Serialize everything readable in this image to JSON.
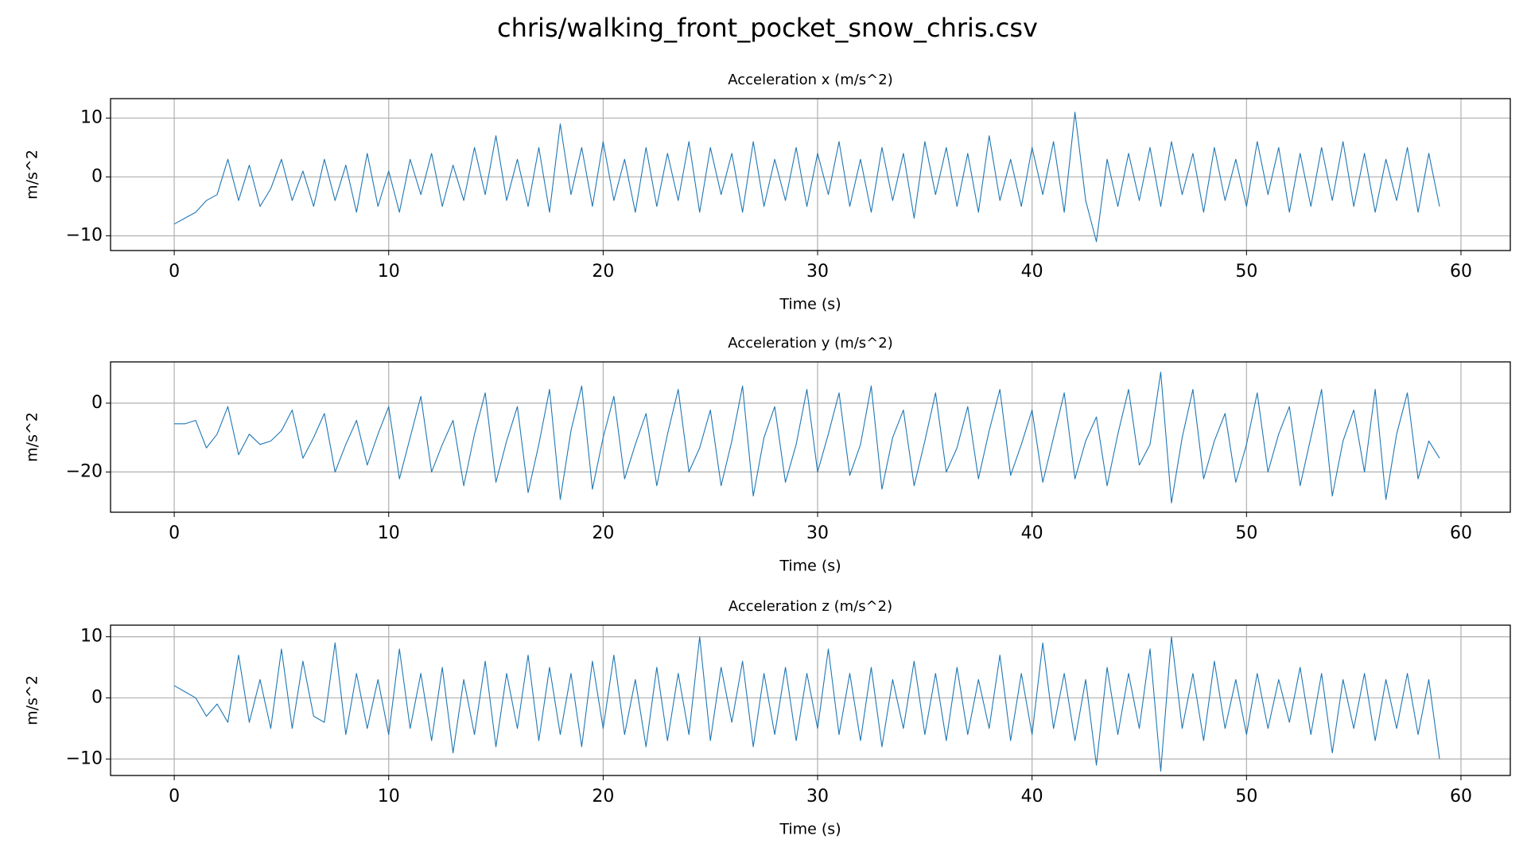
{
  "title": "chris/walking_front_pocket_snow_chris.csv",
  "chart_data": [
    {
      "type": "line",
      "title": "Acceleration x (m/s^2)",
      "x_label": "Time (s)",
      "y_label": "m/s^2",
      "grid": true,
      "xlim": [
        -2.97,
        62.3
      ],
      "xticks": [
        0,
        10,
        20,
        30,
        40,
        50,
        60
      ],
      "ylim": [
        -12.5,
        13.3
      ],
      "yticks": [
        {
          "value": -10,
          "label": "−10"
        },
        0,
        10
      ],
      "x": [
        0,
        0.5,
        1,
        1.5,
        2,
        2.5,
        3,
        3.5,
        4,
        4.5,
        5,
        5.5,
        6,
        6.5,
        7,
        7.5,
        8,
        8.5,
        9,
        9.5,
        10,
        10.5,
        11,
        11.5,
        12,
        12.5,
        13,
        13.5,
        14,
        14.5,
        15,
        15.5,
        16,
        16.5,
        17,
        17.5,
        18,
        18.5,
        19,
        19.5,
        20,
        20.5,
        21,
        21.5,
        22,
        22.5,
        23,
        23.5,
        24,
        24.5,
        25,
        25.5,
        26,
        26.5,
        27,
        27.5,
        28,
        28.5,
        29,
        29.5,
        30,
        30.5,
        31,
        31.5,
        32,
        32.5,
        33,
        33.5,
        34,
        34.5,
        35,
        35.5,
        36,
        36.5,
        37,
        37.5,
        38,
        38.5,
        39,
        39.5,
        40,
        40.5,
        41,
        41.5,
        42,
        42.5,
        43,
        43.5,
        44,
        44.5,
        45,
        45.5,
        46,
        46.5,
        47,
        47.5,
        48,
        48.5,
        49,
        49.5,
        50,
        50.5,
        51,
        51.5,
        52,
        52.5,
        53,
        53.5,
        54,
        54.5,
        55,
        55.5,
        56,
        56.5,
        57,
        57.5,
        58,
        58.5,
        59
      ],
      "series": [
        {
          "color": "#1f77b4",
          "values": [
            -8,
            -7,
            -6,
            -4,
            -3,
            3,
            -4,
            2,
            -5,
            -2,
            3,
            -4,
            1,
            -5,
            3,
            -4,
            2,
            -6,
            4,
            -5,
            1,
            -6,
            3,
            -3,
            4,
            -5,
            2,
            -4,
            5,
            -3,
            7,
            -4,
            3,
            -5,
            5,
            -6,
            9,
            -3,
            5,
            -5,
            6,
            -4,
            3,
            -6,
            5,
            -5,
            4,
            -4,
            6,
            -6,
            5,
            -3,
            4,
            -6,
            6,
            -5,
            3,
            -4,
            5,
            -5,
            4,
            -3,
            6,
            -5,
            3,
            -6,
            5,
            -4,
            4,
            -7,
            6,
            -3,
            5,
            -5,
            4,
            -6,
            7,
            -4,
            3,
            -5,
            5,
            -3,
            6,
            -6,
            11,
            -4,
            -11,
            3,
            -5,
            4,
            -4,
            5,
            -5,
            6,
            -3,
            4,
            -6,
            5,
            -4,
            3,
            -5,
            6,
            -3,
            5,
            -6,
            4,
            -5,
            5,
            -4,
            6,
            -5,
            4,
            -6,
            3,
            -4,
            5,
            -6,
            4,
            -5
          ]
        }
      ]
    },
    {
      "type": "line",
      "title": "Acceleration y (m/s^2)",
      "x_label": "Time (s)",
      "y_label": "m/s^2",
      "grid": true,
      "xlim": [
        -2.97,
        62.3
      ],
      "xticks": [
        0,
        10,
        20,
        30,
        40,
        50,
        60
      ],
      "ylim": [
        -31.7,
        12
      ],
      "yticks": [
        {
          "value": -20,
          "label": "−20"
        },
        0
      ],
      "x": [
        0,
        0.5,
        1,
        1.5,
        2,
        2.5,
        3,
        3.5,
        4,
        4.5,
        5,
        5.5,
        6,
        6.5,
        7,
        7.5,
        8,
        8.5,
        9,
        9.5,
        10,
        10.5,
        11,
        11.5,
        12,
        12.5,
        13,
        13.5,
        14,
        14.5,
        15,
        15.5,
        16,
        16.5,
        17,
        17.5,
        18,
        18.5,
        19,
        19.5,
        20,
        20.5,
        21,
        21.5,
        22,
        22.5,
        23,
        23.5,
        24,
        24.5,
        25,
        25.5,
        26,
        26.5,
        27,
        27.5,
        28,
        28.5,
        29,
        29.5,
        30,
        30.5,
        31,
        31.5,
        32,
        32.5,
        33,
        33.5,
        34,
        34.5,
        35,
        35.5,
        36,
        36.5,
        37,
        37.5,
        38,
        38.5,
        39,
        39.5,
        40,
        40.5,
        41,
        41.5,
        42,
        42.5,
        43,
        43.5,
        44,
        44.5,
        45,
        45.5,
        46,
        46.5,
        47,
        47.5,
        48,
        48.5,
        49,
        49.5,
        50,
        50.5,
        51,
        51.5,
        52,
        52.5,
        53,
        53.5,
        54,
        54.5,
        55,
        55.5,
        56,
        56.5,
        57,
        57.5,
        58,
        58.5,
        59
      ],
      "series": [
        {
          "color": "#1f77b4",
          "values": [
            -6,
            -6,
            -5,
            -13,
            -9,
            -1,
            -15,
            -9,
            -12,
            -11,
            -8,
            -2,
            -16,
            -10,
            -3,
            -20,
            -12,
            -5,
            -18,
            -9,
            -1,
            -22,
            -10,
            2,
            -20,
            -12,
            -5,
            -24,
            -9,
            3,
            -23,
            -11,
            -1,
            -26,
            -12,
            4,
            -28,
            -8,
            5,
            -25,
            -10,
            2,
            -22,
            -12,
            -3,
            -24,
            -9,
            4,
            -20,
            -13,
            -2,
            -24,
            -11,
            5,
            -27,
            -10,
            -1,
            -23,
            -12,
            4,
            -20,
            -9,
            3,
            -21,
            -12,
            5,
            -25,
            -10,
            -2,
            -24,
            -11,
            3,
            -20,
            -13,
            -1,
            -22,
            -8,
            4,
            -21,
            -12,
            -2,
            -23,
            -10,
            3,
            -22,
            -11,
            -4,
            -24,
            -9,
            4,
            -18,
            -12,
            9,
            -29,
            -10,
            4,
            -22,
            -11,
            -3,
            -23,
            -12,
            3,
            -20,
            -9,
            -1,
            -24,
            -10,
            4,
            -27,
            -11,
            -2,
            -20,
            4,
            -28,
            -9,
            3,
            -22,
            -11,
            -16
          ]
        }
      ]
    },
    {
      "type": "line",
      "title": "Acceleration z (m/s^2)",
      "x_label": "Time (s)",
      "y_label": "m/s^2",
      "grid": true,
      "xlim": [
        -2.97,
        62.3
      ],
      "xticks": [
        0,
        10,
        20,
        30,
        40,
        50,
        60
      ],
      "ylim": [
        -12.7,
        11.9
      ],
      "yticks": [
        {
          "value": -10,
          "label": "−10"
        },
        0,
        10
      ],
      "x": [
        0,
        0.5,
        1,
        1.5,
        2,
        2.5,
        3,
        3.5,
        4,
        4.5,
        5,
        5.5,
        6,
        6.5,
        7,
        7.5,
        8,
        8.5,
        9,
        9.5,
        10,
        10.5,
        11,
        11.5,
        12,
        12.5,
        13,
        13.5,
        14,
        14.5,
        15,
        15.5,
        16,
        16.5,
        17,
        17.5,
        18,
        18.5,
        19,
        19.5,
        20,
        20.5,
        21,
        21.5,
        22,
        22.5,
        23,
        23.5,
        24,
        24.5,
        25,
        25.5,
        26,
        26.5,
        27,
        27.5,
        28,
        28.5,
        29,
        29.5,
        30,
        30.5,
        31,
        31.5,
        32,
        32.5,
        33,
        33.5,
        34,
        34.5,
        35,
        35.5,
        36,
        36.5,
        37,
        37.5,
        38,
        38.5,
        39,
        39.5,
        40,
        40.5,
        41,
        41.5,
        42,
        42.5,
        43,
        43.5,
        44,
        44.5,
        45,
        45.5,
        46,
        46.5,
        47,
        47.5,
        48,
        48.5,
        49,
        49.5,
        50,
        50.5,
        51,
        51.5,
        52,
        52.5,
        53,
        53.5,
        54,
        54.5,
        55,
        55.5,
        56,
        56.5,
        57,
        57.5,
        58,
        58.5,
        59
      ],
      "series": [
        {
          "color": "#1f77b4",
          "values": [
            2,
            1,
            0,
            -3,
            -1,
            -4,
            7,
            -4,
            3,
            -5,
            8,
            -5,
            6,
            -3,
            -4,
            9,
            -6,
            4,
            -5,
            3,
            -6,
            8,
            -5,
            4,
            -7,
            5,
            -9,
            3,
            -6,
            6,
            -8,
            4,
            -5,
            7,
            -7,
            5,
            -6,
            4,
            -8,
            6,
            -5,
            7,
            -6,
            3,
            -8,
            5,
            -7,
            4,
            -6,
            10,
            -7,
            5,
            -4,
            6,
            -8,
            4,
            -6,
            5,
            -7,
            4,
            -5,
            8,
            -6,
            4,
            -7,
            5,
            -8,
            3,
            -5,
            6,
            -6,
            4,
            -7,
            5,
            -6,
            3,
            -5,
            7,
            -7,
            4,
            -6,
            9,
            -5,
            4,
            -7,
            3,
            -11,
            5,
            -6,
            4,
            -5,
            8,
            -12,
            10,
            -5,
            4,
            -7,
            6,
            -5,
            3,
            -6,
            4,
            -5,
            3,
            -4,
            5,
            -6,
            4,
            -9,
            3,
            -5,
            4,
            -7,
            3,
            -5,
            4,
            -6,
            3,
            -10
          ]
        }
      ]
    }
  ]
}
